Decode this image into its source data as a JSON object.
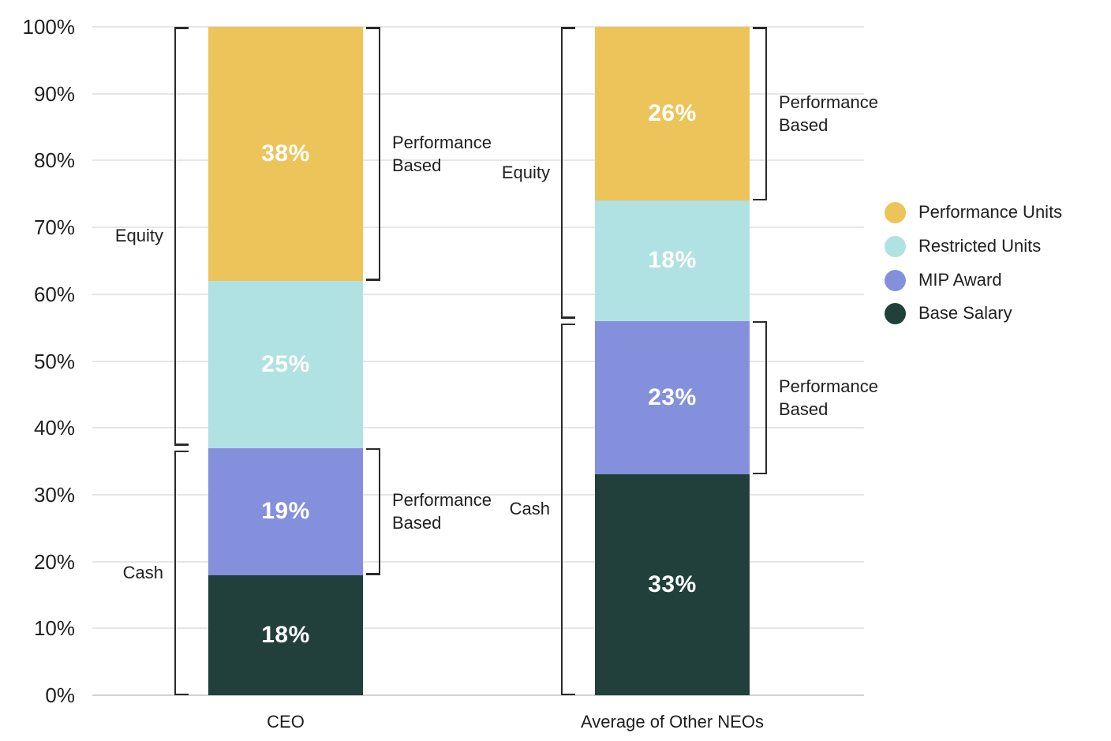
{
  "chart_data": {
    "type": "bar",
    "stacked": true,
    "title": "",
    "categories": [
      "CEO",
      "Average of Other NEOs"
    ],
    "series": [
      {
        "name": "Base Salary",
        "color": "#21403c",
        "values": [
          18,
          33
        ]
      },
      {
        "name": "MIP Award",
        "color": "#8490dc",
        "values": [
          19,
          23
        ]
      },
      {
        "name": "Restricted Units",
        "color": "#b0e1e3",
        "values": [
          25,
          18
        ]
      },
      {
        "name": "Performance Units",
        "color": "#ecc45a",
        "values": [
          38,
          26
        ]
      }
    ],
    "value_suffix": "%",
    "ylim": [
      0,
      100
    ],
    "ytick_step": 10,
    "yticks": [
      "0%",
      "10%",
      "20%",
      "30%",
      "40%",
      "50%",
      "60%",
      "70%",
      "80%",
      "90%",
      "100%"
    ],
    "grid": true,
    "legend_position": "right",
    "legend_order": [
      "Performance Units",
      "Restricted Units",
      "MIP Award",
      "Base Salary"
    ],
    "brackets": [
      {
        "bar": 0,
        "side": "left",
        "label": "Equity",
        "from_pct": 37,
        "to_pct": 100
      },
      {
        "bar": 0,
        "side": "left",
        "label": "Cash",
        "from_pct": 0,
        "to_pct": 37
      },
      {
        "bar": 0,
        "side": "right",
        "label": "Performance Based",
        "from_pct": 62,
        "to_pct": 100
      },
      {
        "bar": 0,
        "side": "right",
        "label": "Performance Based",
        "from_pct": 18,
        "to_pct": 37
      },
      {
        "bar": 1,
        "side": "left",
        "label": "Equity",
        "from_pct": 56,
        "to_pct": 100
      },
      {
        "bar": 1,
        "side": "left",
        "label": "Cash",
        "from_pct": 0,
        "to_pct": 56
      },
      {
        "bar": 1,
        "side": "right",
        "label": "Performance Based",
        "from_pct": 74,
        "to_pct": 100
      },
      {
        "bar": 1,
        "side": "right",
        "label": "Performance Based",
        "from_pct": 33,
        "to_pct": 56
      }
    ],
    "colors": {
      "grid": "#e6e6e6",
      "zero_axis": "#d2d2d2",
      "bracket": "#2a2a2a",
      "text": "#1f1f1f",
      "bar_value_label": "#ffffff"
    }
  }
}
